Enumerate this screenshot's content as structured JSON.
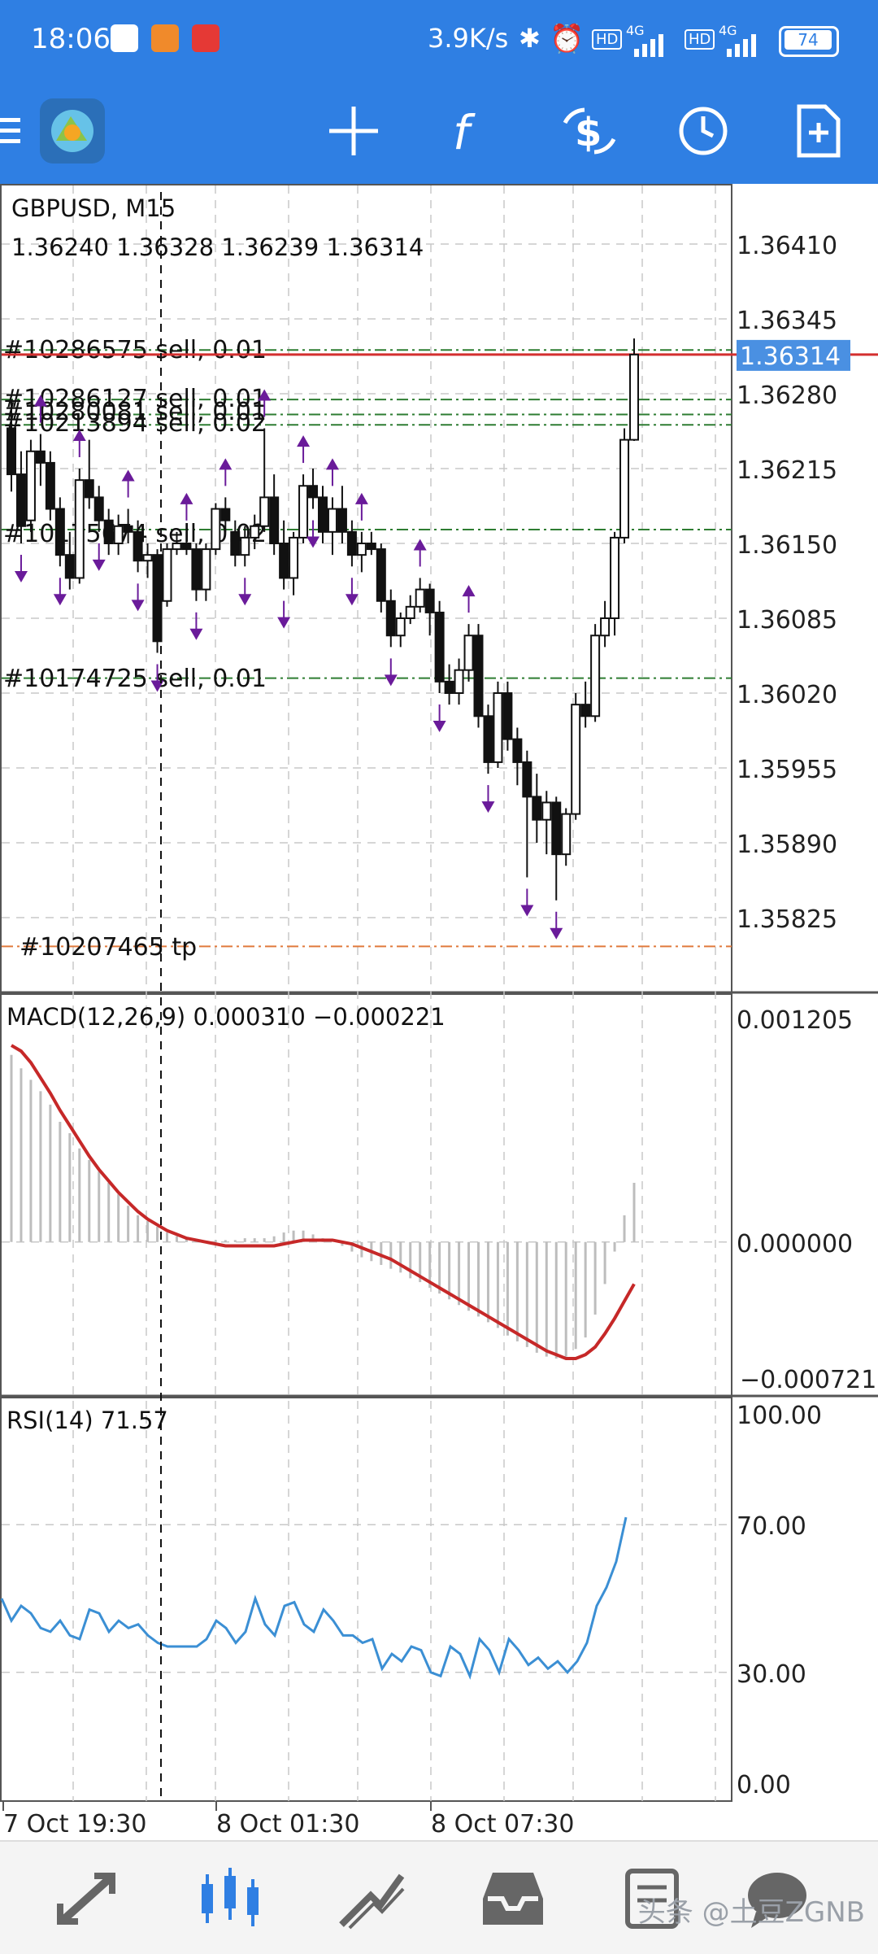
{
  "status_bar": {
    "time": "18:06",
    "net_speed": "3.9K/s",
    "battery": "74",
    "network_label_1": "4G",
    "network_label_2": "4G",
    "hd_label": "HD"
  },
  "toolbar": {
    "items": [
      "menu",
      "app-logo",
      "crosshair",
      "indicators",
      "trade",
      "timeframe",
      "new-order"
    ]
  },
  "chart_data": {
    "type": "candlestick",
    "symbol_title": "GBPUSD, M15",
    "ohlc_line": "1.36240 1.36328 1.36239 1.36314",
    "price_axis_labels": [
      "1.36410",
      "1.36345",
      "1.36280",
      "1.36215",
      "1.36150",
      "1.36085",
      "1.36020",
      "1.35955",
      "1.35890",
      "1.35825"
    ],
    "current_price": "1.36314",
    "order_lines": [
      {
        "label": "#10286575 sell, 0.01",
        "price": 1.36318,
        "color": "#2e7d32"
      },
      {
        "label": "#10286127 sell, 0.01",
        "price": 1.36275,
        "color": "#2e7d32"
      },
      {
        "label": "#10280081 sell, 0.01",
        "price": 1.36262,
        "color": "#2e7d32"
      },
      {
        "label": "#10213894 sell, 0.02",
        "price": 1.36253,
        "color": "#2e7d32"
      },
      {
        "label": "#10175674 sell, 0.02",
        "price": 1.36162,
        "color": "#2e7d32"
      },
      {
        "label": "#10174725 sell, 0.01",
        "price": 1.36033,
        "color": "#2e7d32"
      },
      {
        "label": "#10207465 tp",
        "price": 1.358,
        "color": "#e07a3c"
      }
    ],
    "price_line_color": "#d32f2f",
    "candles": [
      [
        1.3625,
        1.36275,
        1.36195,
        1.3621
      ],
      [
        1.3621,
        1.3623,
        1.3615,
        1.36165
      ],
      [
        1.3617,
        1.3624,
        1.3616,
        1.3623
      ],
      [
        1.3623,
        1.36245,
        1.362,
        1.3622
      ],
      [
        1.3622,
        1.3623,
        1.3617,
        1.3618
      ],
      [
        1.3618,
        1.3619,
        1.3613,
        1.3614
      ],
      [
        1.3614,
        1.3616,
        1.3611,
        1.3612
      ],
      [
        1.3612,
        1.36215,
        1.36115,
        1.36205
      ],
      [
        1.36205,
        1.3624,
        1.3618,
        1.3619
      ],
      [
        1.3619,
        1.362,
        1.3616,
        1.3617
      ],
      [
        1.3617,
        1.3618,
        1.3614,
        1.3615
      ],
      [
        1.3615,
        1.36175,
        1.3614,
        1.36165
      ],
      [
        1.36165,
        1.3618,
        1.3615,
        1.3616
      ],
      [
        1.3616,
        1.3617,
        1.36125,
        1.36135
      ],
      [
        1.36135,
        1.3615,
        1.3612,
        1.3614
      ],
      [
        1.3614,
        1.36145,
        1.36055,
        1.36065
      ],
      [
        1.361,
        1.3615,
        1.36095,
        1.36145
      ],
      [
        1.36145,
        1.3616,
        1.3614,
        1.3615
      ],
      [
        1.3615,
        1.3616,
        1.3614,
        1.36145
      ],
      [
        1.36145,
        1.3615,
        1.361,
        1.3611
      ],
      [
        1.3611,
        1.3615,
        1.361,
        1.36145
      ],
      [
        1.36145,
        1.36185,
        1.3614,
        1.3618
      ],
      [
        1.3618,
        1.3619,
        1.3616,
        1.3617
      ],
      [
        1.3616,
        1.3617,
        1.3613,
        1.3614
      ],
      [
        1.3614,
        1.36165,
        1.3613,
        1.36155
      ],
      [
        1.36155,
        1.36175,
        1.36145,
        1.36165
      ],
      [
        1.36165,
        1.3625,
        1.3616,
        1.3619
      ],
      [
        1.3619,
        1.3621,
        1.3614,
        1.3615
      ],
      [
        1.3615,
        1.3617,
        1.3611,
        1.3612
      ],
      [
        1.3612,
        1.3616,
        1.36105,
        1.36155
      ],
      [
        1.36155,
        1.3621,
        1.3615,
        1.362
      ],
      [
        1.362,
        1.36215,
        1.3618,
        1.3619
      ],
      [
        1.3619,
        1.362,
        1.3615,
        1.3616
      ],
      [
        1.3616,
        1.3619,
        1.3614,
        1.3618
      ],
      [
        1.3618,
        1.362,
        1.3615,
        1.3616
      ],
      [
        1.3616,
        1.3617,
        1.3613,
        1.3614
      ],
      [
        1.3614,
        1.3616,
        1.36125,
        1.3615
      ],
      [
        1.3615,
        1.3616,
        1.3614,
        1.36145
      ],
      [
        1.36145,
        1.3615,
        1.3609,
        1.361
      ],
      [
        1.361,
        1.3611,
        1.3606,
        1.3607
      ],
      [
        1.3607,
        1.3609,
        1.3606,
        1.36085
      ],
      [
        1.36085,
        1.36105,
        1.3608,
        1.36095
      ],
      [
        1.36095,
        1.3612,
        1.3609,
        1.3611
      ],
      [
        1.3611,
        1.36115,
        1.3607,
        1.3609
      ],
      [
        1.3609,
        1.361,
        1.3602,
        1.3603
      ],
      [
        1.3603,
        1.36045,
        1.3601,
        1.3602
      ],
      [
        1.3602,
        1.3605,
        1.3601,
        1.3604
      ],
      [
        1.3604,
        1.3608,
        1.3603,
        1.3607
      ],
      [
        1.3607,
        1.3608,
        1.3599,
        1.36
      ],
      [
        1.36,
        1.3601,
        1.3595,
        1.3596
      ],
      [
        1.3596,
        1.3603,
        1.35955,
        1.3602
      ],
      [
        1.3602,
        1.3603,
        1.3597,
        1.3598
      ],
      [
        1.3598,
        1.3599,
        1.3594,
        1.3596
      ],
      [
        1.3596,
        1.3597,
        1.3586,
        1.3593
      ],
      [
        1.3593,
        1.3595,
        1.3589,
        1.3591
      ],
      [
        1.3591,
        1.35935,
        1.3588,
        1.35925
      ],
      [
        1.35925,
        1.3593,
        1.3584,
        1.3588
      ],
      [
        1.3588,
        1.3592,
        1.3587,
        1.35915
      ],
      [
        1.35915,
        1.3602,
        1.3591,
        1.3601
      ],
      [
        1.3601,
        1.3603,
        1.3599,
        1.36
      ],
      [
        1.36,
        1.3608,
        1.35995,
        1.3607
      ],
      [
        1.3607,
        1.361,
        1.3606,
        1.36085
      ],
      [
        1.36085,
        1.3616,
        1.3607,
        1.36155
      ],
      [
        1.36155,
        1.3625,
        1.3615,
        1.3624
      ],
      [
        1.3624,
        1.36328,
        1.36239,
        1.36314
      ]
    ],
    "up_arrows_at": [
      3,
      7,
      12,
      18,
      22,
      26,
      30,
      33,
      36,
      42,
      47
    ],
    "down_arrows_at": [
      1,
      5,
      9,
      13,
      15,
      19,
      24,
      28,
      31,
      35,
      39,
      44,
      49,
      53,
      56
    ],
    "time_labels": [
      "7 Oct 19:30",
      "8 Oct 01:30",
      "8 Oct 07:30"
    ],
    "macd": {
      "label": "MACD(12,26,9) 0.000310 −0.000221",
      "axis_labels": [
        "0.001205",
        "0.000000",
        "−0.000721"
      ],
      "ylim": [
        -0.000721,
        0.001205
      ],
      "histogram": [
        0.00098,
        0.00091,
        0.00085,
        0.00079,
        0.00072,
        0.00063,
        0.00057,
        0.00049,
        0.00043,
        0.00037,
        0.00031,
        0.00025,
        0.00019,
        0.00014,
        0.00011,
        8e-05,
        5e-05,
        3e-05,
        2e-05,
        1e-05,
        0.0,
        1e-05,
        1e-05,
        1e-05,
        2e-05,
        2e-05,
        2e-05,
        3e-05,
        5e-05,
        6e-05,
        6e-05,
        4e-05,
        2e-05,
        0.0,
        -2e-05,
        -5e-05,
        -8e-05,
        -0.0001,
        -0.00012,
        -0.00014,
        -0.00016,
        -0.00019,
        -0.00021,
        -0.00024,
        -0.00027,
        -0.0003,
        -0.00033,
        -0.00036,
        -0.00039,
        -0.00042,
        -0.00045,
        -0.00049,
        -0.00052,
        -0.00055,
        -0.00058,
        -0.0006,
        -0.00061,
        -0.0006,
        -0.00056,
        -0.0005,
        -0.00038,
        -0.00022,
        -5e-05,
        0.00014,
        0.00031
      ],
      "signal": [
        0.00103,
        0.001,
        0.00094,
        0.00086,
        0.00078,
        0.00069,
        0.00061,
        0.00053,
        0.00045,
        0.00038,
        0.00032,
        0.00026,
        0.00021,
        0.00016,
        0.00012,
        9e-05,
        6e-05,
        4e-05,
        2e-05,
        1e-05,
        0.0,
        -1e-05,
        -2e-05,
        -2e-05,
        -2e-05,
        -2e-05,
        -2e-05,
        -2e-05,
        -1e-05,
        0.0,
        1e-05,
        1e-05,
        1e-05,
        1e-05,
        0.0,
        -1e-05,
        -3e-05,
        -5e-05,
        -7e-05,
        -9e-05,
        -0.00012,
        -0.00015,
        -0.00018,
        -0.00021,
        -0.00024,
        -0.00027,
        -0.0003,
        -0.00033,
        -0.00036,
        -0.00039,
        -0.00042,
        -0.00045,
        -0.00048,
        -0.00051,
        -0.00054,
        -0.00057,
        -0.00059,
        -0.00061,
        -0.00061,
        -0.00059,
        -0.00055,
        -0.00048,
        -0.0004,
        -0.00031,
        -0.00022
      ]
    },
    "rsi": {
      "label": "RSI(14) 71.57",
      "axis_labels": [
        "100.00",
        "70.00",
        "30.00",
        "0.00"
      ],
      "ylim": [
        0,
        100
      ],
      "levels": [
        70,
        30
      ],
      "values": [
        50,
        44,
        48,
        46,
        42,
        41,
        44,
        40,
        39,
        47,
        46,
        41,
        44,
        42,
        43,
        40,
        38,
        37,
        37,
        37,
        37,
        39,
        44,
        42,
        38,
        41,
        50,
        43,
        40,
        48,
        49,
        43,
        41,
        47,
        44,
        40,
        40,
        38,
        39,
        31,
        35,
        33,
        37,
        36,
        30,
        29,
        37,
        35,
        29,
        39,
        36,
        30,
        39,
        36,
        32,
        34,
        31,
        33,
        30,
        33,
        38,
        48,
        53,
        60,
        72
      ]
    },
    "colors": {
      "rsi": "#3b8fd4",
      "macd_signal": "#c62828",
      "histogram": "#bdbdbd",
      "arrow": "#6a1b9a",
      "order": "#2e7d32",
      "tp": "#e07a3c",
      "grid": "#c8c8c8",
      "current_price_bg": "#4a90e2"
    }
  },
  "watermark": "头条 @土豆ZGNB",
  "bottom_nav": [
    "quotes",
    "chart",
    "trade",
    "history",
    "messages"
  ]
}
